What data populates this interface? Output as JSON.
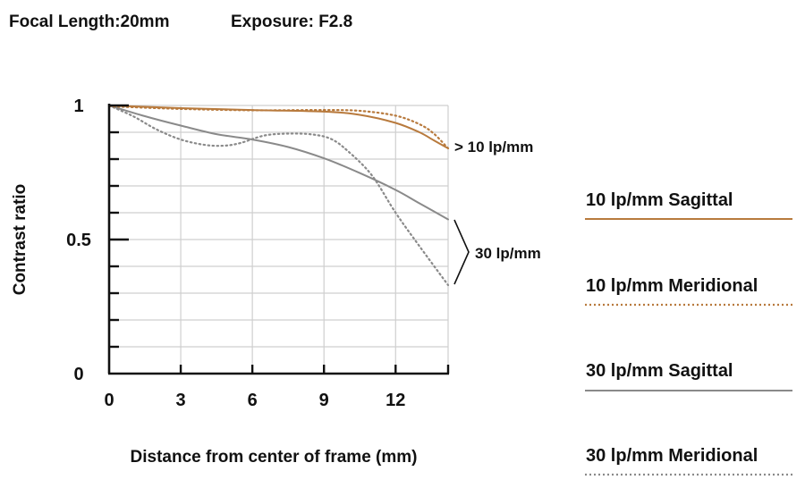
{
  "header": {
    "focal_length": "Focal Length:20mm",
    "exposure": "Exposure: F2.8"
  },
  "chart_data": {
    "type": "line",
    "xlabel": "Distance from center of frame (mm)",
    "ylabel": "Contrast ratio",
    "xlim": [
      0,
      14.2
    ],
    "ylim": [
      0,
      1
    ],
    "x_ticks": [
      0,
      3,
      6,
      9,
      12
    ],
    "x_tick_labels": [
      "0",
      "3",
      "6",
      "9",
      "12"
    ],
    "y_ticks": [
      0,
      0.5,
      1
    ],
    "y_tick_labels": [
      "0",
      "0.5",
      "1"
    ],
    "y_minor_step": 0.1,
    "grid": true,
    "legend_position": "right",
    "annotations": {
      "group_10": "> 10 lp/mm",
      "group_30": "30 lp/mm"
    },
    "series": [
      {
        "name": "10 lp/mm Sagittal",
        "color": "#b87a3d",
        "style": "solid",
        "points": [
          [
            0,
            1.0
          ],
          [
            3,
            0.99
          ],
          [
            6,
            0.983
          ],
          [
            9,
            0.977
          ],
          [
            10.5,
            0.965
          ],
          [
            12,
            0.935
          ],
          [
            13,
            0.9
          ],
          [
            13.6,
            0.87
          ],
          [
            14.2,
            0.84
          ]
        ]
      },
      {
        "name": "10 lp/mm Meridional",
        "color": "#b87a3d",
        "style": "dotted",
        "points": [
          [
            0,
            0.997
          ],
          [
            3,
            0.987
          ],
          [
            6,
            0.982
          ],
          [
            9,
            0.983
          ],
          [
            10.5,
            0.98
          ],
          [
            12,
            0.962
          ],
          [
            13,
            0.93
          ],
          [
            13.6,
            0.895
          ],
          [
            14.2,
            0.84
          ]
        ]
      },
      {
        "name": "30 lp/mm Sagittal",
        "color": "#8a8a8a",
        "style": "solid",
        "points": [
          [
            0,
            1.0
          ],
          [
            1.5,
            0.96
          ],
          [
            3,
            0.925
          ],
          [
            4.5,
            0.893
          ],
          [
            6,
            0.873
          ],
          [
            7.5,
            0.845
          ],
          [
            9,
            0.803
          ],
          [
            10.5,
            0.748
          ],
          [
            12,
            0.685
          ],
          [
            13,
            0.635
          ],
          [
            14.2,
            0.575
          ]
        ]
      },
      {
        "name": "30 lp/mm Meridional",
        "color": "#8a8a8a",
        "style": "dotted",
        "points": [
          [
            0,
            1.0
          ],
          [
            1,
            0.96
          ],
          [
            2,
            0.91
          ],
          [
            3,
            0.873
          ],
          [
            4,
            0.853
          ],
          [
            4.8,
            0.85
          ],
          [
            5.5,
            0.86
          ],
          [
            6.5,
            0.888
          ],
          [
            7.5,
            0.895
          ],
          [
            8.5,
            0.892
          ],
          [
            9.3,
            0.875
          ],
          [
            10,
            0.83
          ],
          [
            11,
            0.74
          ],
          [
            12,
            0.6
          ],
          [
            13,
            0.475
          ],
          [
            14.2,
            0.33
          ]
        ]
      }
    ]
  }
}
